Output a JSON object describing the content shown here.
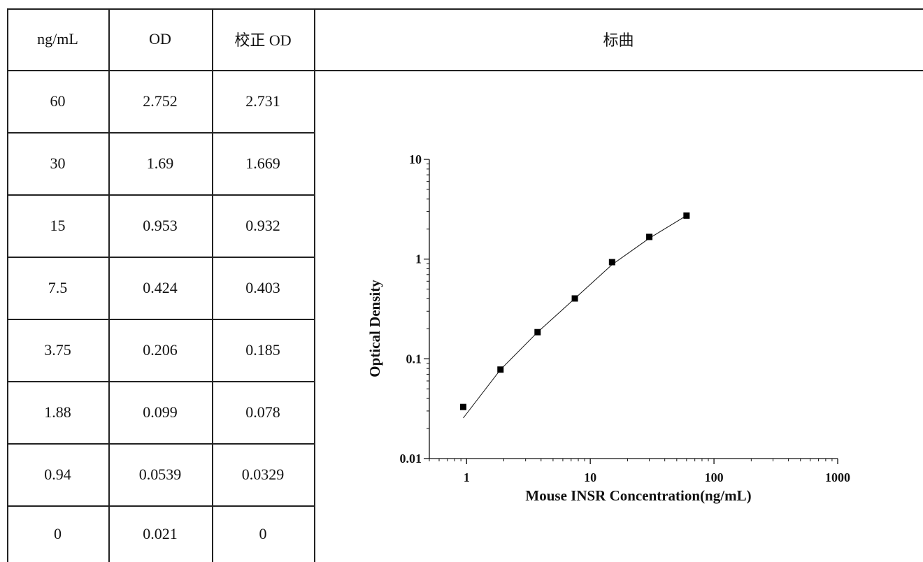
{
  "table": {
    "headers": [
      "ng/mL",
      "OD",
      "校正 OD"
    ],
    "rows": [
      [
        "60",
        "2.752",
        "2.731"
      ],
      [
        "30",
        "1.69",
        "1.669"
      ],
      [
        "15",
        "0.953",
        "0.932"
      ],
      [
        "7.5",
        "0.424",
        "0.403"
      ],
      [
        "3.75",
        "0.206",
        "0.185"
      ],
      [
        "1.88",
        "0.099",
        "0.078"
      ],
      [
        "0.94",
        "0.0539",
        "0.0329"
      ],
      [
        "0",
        "0.021",
        "0"
      ]
    ]
  },
  "chart_title": "标曲",
  "chart_data": {
    "type": "scatter",
    "xlabel": "Mouse INSR Concentration(ng/mL)",
    "ylabel": "Optical Density",
    "x_scale": "log",
    "y_scale": "log",
    "xlim": [
      0.5,
      1000
    ],
    "ylim": [
      0.01,
      10
    ],
    "x_ticks": [
      "1",
      "10",
      "100",
      "1000"
    ],
    "y_ticks": [
      "0.01",
      "0.1",
      "1",
      "10"
    ],
    "series": [
      {
        "points": [
          {
            "x": 0.94,
            "y": 0.0329
          },
          {
            "x": 1.88,
            "y": 0.078
          },
          {
            "x": 3.75,
            "y": 0.185
          },
          {
            "x": 7.5,
            "y": 0.403
          },
          {
            "x": 15,
            "y": 0.932
          },
          {
            "x": 30,
            "y": 1.669
          },
          {
            "x": 60,
            "y": 2.731
          }
        ],
        "marker": "square",
        "color": "#000000"
      }
    ],
    "fit_curve": [
      {
        "x": 0.94,
        "y": 0.0255
      },
      {
        "x": 1.88,
        "y": 0.078
      },
      {
        "x": 3.75,
        "y": 0.185
      },
      {
        "x": 7.5,
        "y": 0.403
      },
      {
        "x": 15,
        "y": 0.88
      },
      {
        "x": 30,
        "y": 1.62
      },
      {
        "x": 60,
        "y": 2.731
      }
    ],
    "grid": false,
    "legend": "none"
  }
}
